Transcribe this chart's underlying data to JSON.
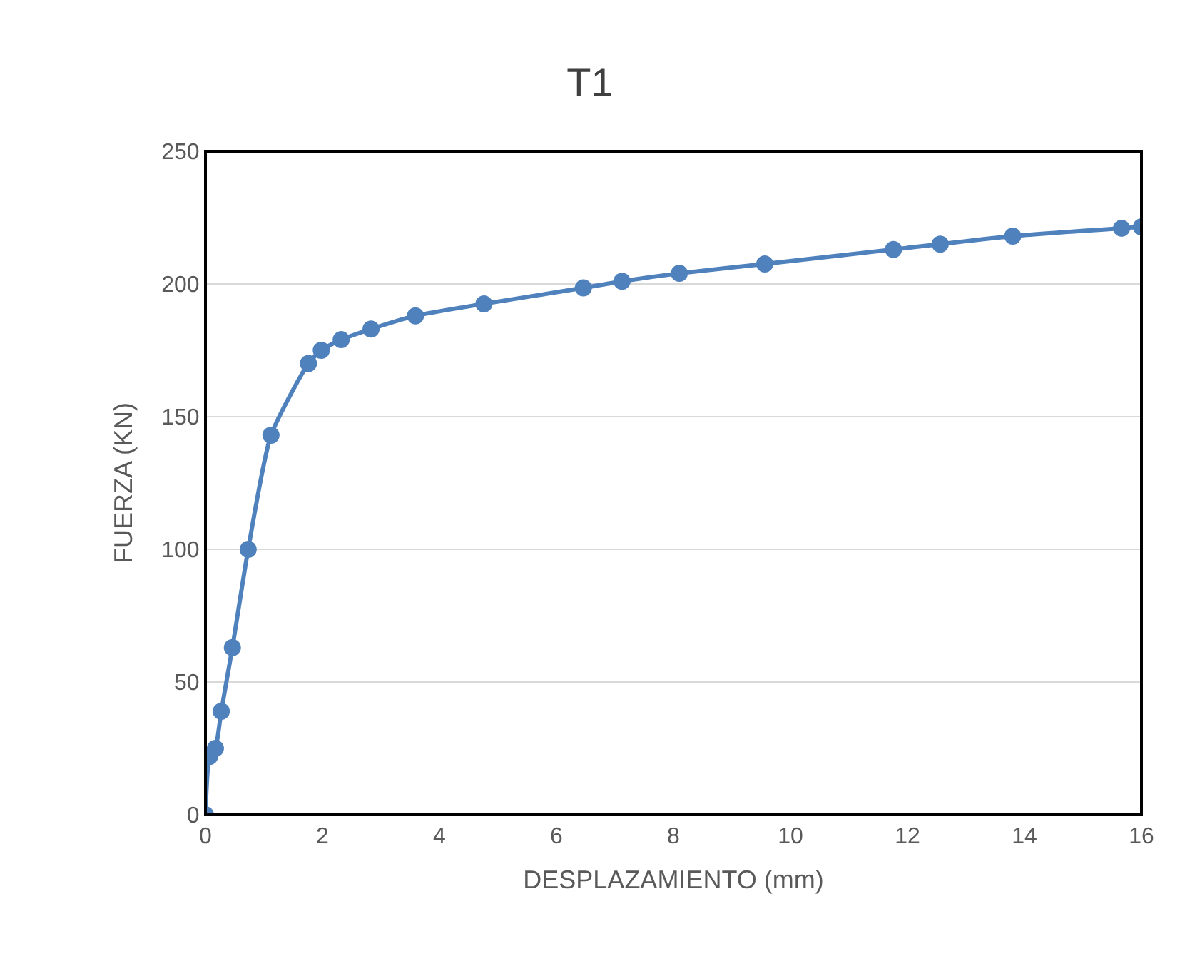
{
  "chart_data": {
    "type": "line",
    "title": "T1",
    "xlabel": "DESPLAZAMIENTO (mm)",
    "ylabel": "FUERZA (KN)",
    "x": [
      0,
      0.07,
      0.17,
      0.27,
      0.46,
      0.73,
      1.12,
      1.76,
      1.98,
      2.32,
      2.83,
      3.59,
      4.76,
      6.46,
      7.12,
      8.1,
      9.56,
      11.76,
      12.56,
      13.8,
      15.66,
      16
    ],
    "series": [
      {
        "color": "#4f81bd",
        "values": [
          0,
          22,
          25,
          39,
          63,
          100,
          143,
          170,
          175,
          179,
          183,
          188,
          192.5,
          198.5,
          201,
          204,
          207.5,
          213,
          215,
          218,
          221,
          221.5
        ]
      }
    ],
    "xlim": [
      0,
      16
    ],
    "xticks": [
      0,
      2,
      4,
      6,
      8,
      10,
      12,
      14,
      16
    ],
    "ylim": [
      0,
      250
    ],
    "yticks": [
      0,
      50,
      100,
      150,
      200,
      250
    ],
    "grid": "y",
    "marker": "circle",
    "line_style": "solid"
  }
}
